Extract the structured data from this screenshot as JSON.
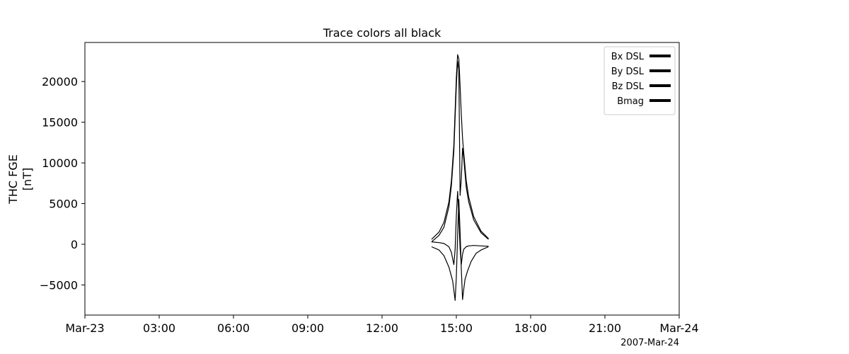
{
  "chart_data": {
    "type": "line",
    "title": "Trace colors all black",
    "ylabel_lines": [
      "THC FGE",
      "[nT]"
    ],
    "xlabel_note": "2007-Mar-24",
    "x_unit": "hours since 2007-03-23 00:00",
    "xlim": [
      0,
      24
    ],
    "ylim": [
      -8700,
      24800
    ],
    "x_ticks": [
      0,
      3,
      6,
      9,
      12,
      15,
      18,
      21,
      24
    ],
    "x_tick_labels": [
      "Mar-23",
      "03:00",
      "06:00",
      "09:00",
      "12:00",
      "15:00",
      "18:00",
      "21:00",
      "Mar-24"
    ],
    "y_ticks": [
      -5000,
      0,
      5000,
      10000,
      15000,
      20000
    ],
    "y_tick_labels": [
      "−5000",
      "0",
      "5000",
      "10000",
      "15000",
      "20000"
    ],
    "grid": false,
    "legend_position": "top-right",
    "color": "#000000",
    "series": [
      {
        "name": "Bx DSL",
        "x": [
          14.0,
          14.3,
          14.5,
          14.7,
          14.8,
          14.9,
          14.95,
          15.0,
          15.05,
          15.1,
          15.15,
          15.2,
          15.25,
          15.3,
          15.4,
          15.5,
          15.7,
          16.0,
          16.3
        ],
        "values": [
          300,
          200,
          100,
          -300,
          -1000,
          -2500,
          -600,
          3500,
          6500,
          3500,
          -500,
          -2500,
          -1200,
          -600,
          -300,
          -200,
          -150,
          -200,
          -250
        ]
      },
      {
        "name": "By DSL",
        "x": [
          14.0,
          14.3,
          14.5,
          14.7,
          14.85,
          14.95,
          15.0,
          15.05,
          15.1,
          15.15,
          15.2,
          15.25,
          15.3,
          15.35,
          15.45,
          15.6,
          15.8,
          16.0,
          16.3
        ],
        "values": [
          -300,
          -700,
          -1400,
          -2800,
          -4500,
          -6900,
          -4000,
          1000,
          5500,
          1500,
          -3000,
          -6800,
          -5500,
          -4300,
          -3300,
          -2100,
          -1100,
          -700,
          -300
        ]
      },
      {
        "name": "Bz DSL",
        "x": [
          14.0,
          14.3,
          14.5,
          14.7,
          14.8,
          14.9,
          15.0,
          15.05,
          15.1,
          15.15,
          15.2,
          15.25,
          15.3,
          15.4,
          15.5,
          15.7,
          16.0,
          16.3
        ],
        "values": [
          300,
          1100,
          2100,
          4600,
          7200,
          11500,
          19500,
          22500,
          21500,
          6000,
          8000,
          11800,
          10500,
          7000,
          5200,
          3000,
          1400,
          600
        ]
      },
      {
        "name": "Bmag",
        "x": [
          14.0,
          14.3,
          14.5,
          14.7,
          14.8,
          14.9,
          15.0,
          15.05,
          15.1,
          15.15,
          15.2,
          15.25,
          15.3,
          15.4,
          15.5,
          15.7,
          16.0,
          16.3
        ],
        "values": [
          600,
          1500,
          2700,
          5200,
          7800,
          12200,
          20500,
          23300,
          22800,
          19500,
          16000,
          13000,
          11200,
          7800,
          5800,
          3400,
          1600,
          700
        ]
      }
    ]
  }
}
